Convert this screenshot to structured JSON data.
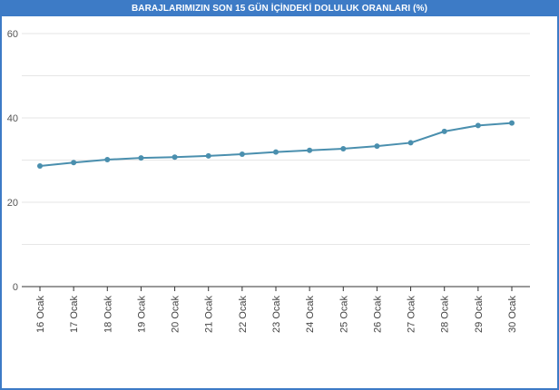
{
  "chart_data": {
    "type": "line",
    "title": "BARAJLARIMIZIN SON 15 GÜN İÇİNDEKİ DOLULUK ORANLARI (%)",
    "categories": [
      "16 Ocak",
      "17 Ocak",
      "18 Ocak",
      "19 Ocak",
      "20 Ocak",
      "21 Ocak",
      "22 Ocak",
      "23 Ocak",
      "24 Ocak",
      "25 Ocak",
      "26 Ocak",
      "27 Ocak",
      "28 Ocak",
      "29 Ocak",
      "30 Ocak"
    ],
    "series": [
      {
        "values": [
          28.6,
          29.4,
          30.1,
          30.5,
          30.7,
          31.0,
          31.4,
          31.9,
          32.3,
          32.7,
          33.3,
          34.1,
          36.8,
          38.2,
          38.8
        ],
        "color": "#4a8fae"
      }
    ],
    "ylim": [
      0,
      60
    ],
    "yticks": [
      0,
      20,
      40,
      60
    ],
    "grid": true,
    "colors": {
      "header": "#3d7bc6",
      "line": "#4a8fae",
      "grid": "#e6e6e6",
      "axis": "#333333"
    }
  }
}
